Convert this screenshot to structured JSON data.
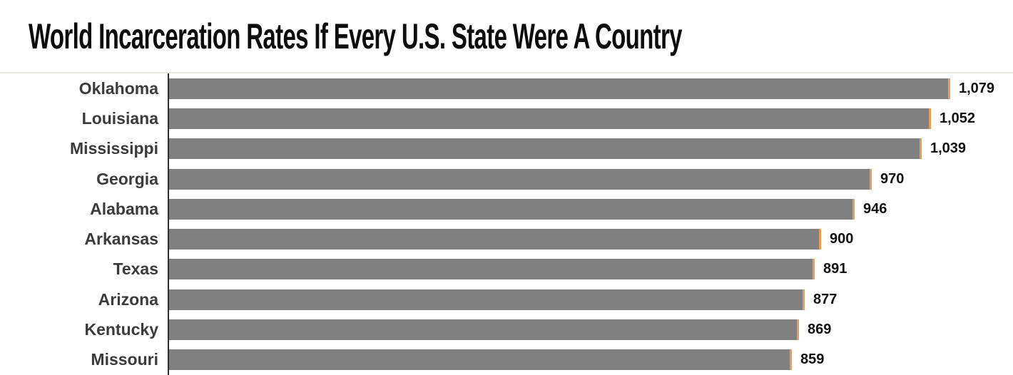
{
  "chart_data": {
    "type": "bar",
    "orientation": "horizontal",
    "title": "World Incarceration Rates If Every U.S. State Were A Country",
    "xlabel": "",
    "ylabel": "",
    "categories": [
      "Oklahoma",
      "Louisiana",
      "Mississippi",
      "Georgia",
      "Alabama",
      "Arkansas",
      "Texas",
      "Arizona",
      "Kentucky",
      "Missouri"
    ],
    "values": [
      1079,
      1052,
      1039,
      970,
      946,
      900,
      891,
      877,
      869,
      859
    ],
    "value_labels": [
      "1,079",
      "1,052",
      "1,039",
      "970",
      "946",
      "900",
      "891",
      "877",
      "869",
      "859"
    ],
    "xlim": [
      0,
      1170
    ],
    "grid": false,
    "legend": false,
    "bar_color": "#808080",
    "bar_tip_color": "#ea9d52",
    "axis_line_color": "#2f2f2f",
    "divider_color": "#e9e6df",
    "title_color": "#0d0d0d",
    "category_label_color": "#3b3b3b",
    "value_label_color": "#121212"
  }
}
